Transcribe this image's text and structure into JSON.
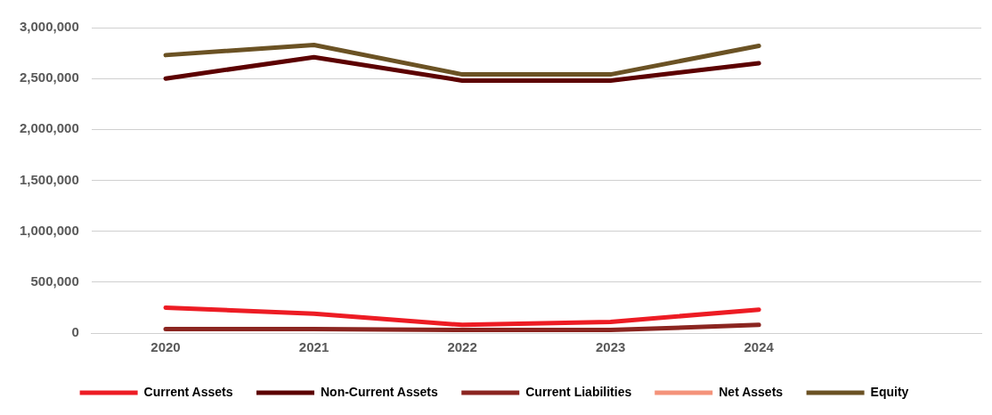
{
  "chart_data": {
    "type": "line",
    "categories": [
      "2020",
      "2021",
      "2022",
      "2023",
      "2024",
      null
    ],
    "series": [
      {
        "name": "Current Assets",
        "color": "#ed1c24",
        "values": [
          250000,
          190000,
          80000,
          110000,
          230000,
          null
        ]
      },
      {
        "name": "Non-Current Assets",
        "color": "#5c0000",
        "values": [
          2500000,
          2710000,
          2480000,
          2480000,
          2650000,
          null
        ]
      },
      {
        "name": "Current Liabilities",
        "color": "#8b2520",
        "values": [
          40000,
          40000,
          30000,
          30000,
          80000,
          null
        ]
      },
      {
        "name": "Net Assets",
        "color": "#f4937a",
        "values": [
          null,
          null,
          null,
          null,
          null,
          null
        ]
      },
      {
        "name": "Equity",
        "color": "#6b5224",
        "values": [
          2730000,
          2830000,
          2540000,
          2540000,
          2820000,
          null
        ]
      }
    ],
    "ylim": [
      0,
      3000000
    ],
    "yticks": [
      {
        "value": 0,
        "label": "0"
      },
      {
        "value": 500000,
        "label": "500,000"
      },
      {
        "value": 1000000,
        "label": "1,000,000"
      },
      {
        "value": 1500000,
        "label": "1,500,000"
      },
      {
        "value": 2000000,
        "label": "2,000,000"
      },
      {
        "value": 2500000,
        "label": "2,500,000"
      },
      {
        "value": 3000000,
        "label": "3,000,000"
      }
    ],
    "grid": "y",
    "legend": "bottom",
    "marker": "none",
    "line_style": "solid"
  }
}
